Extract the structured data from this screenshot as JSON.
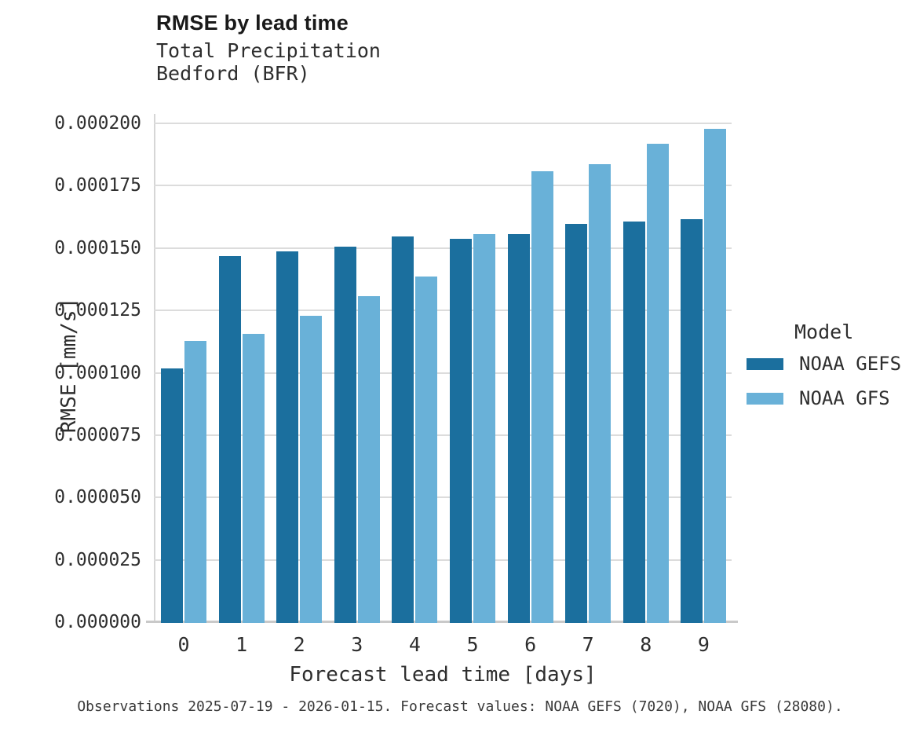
{
  "title": "RMSE by lead time",
  "subtitle_line1": "Total Precipitation",
  "subtitle_line2": "Bedford (BFR)",
  "caption": "Observations 2025-07-19 - 2026-01-15. Forecast values: NOAA GEFS (7020), NOAA GFS (28080).",
  "legend": {
    "title": "Model",
    "entries": [
      {
        "label": "NOAA GEFS",
        "color": "#1b6f9e"
      },
      {
        "label": "NOAA GFS",
        "color": "#69b1d8"
      }
    ]
  },
  "colors": {
    "gefs_bar": "#1b6f9e",
    "gfs_bar": "#69b1d8",
    "gridline": "#dcdcdc",
    "axis_line": "#c9c9c9",
    "text": "#2e2e2e"
  },
  "chart_data": {
    "type": "bar",
    "title": "RMSE by lead time",
    "subtitle": [
      "Total Precipitation",
      "Bedford (BFR)"
    ],
    "xlabel": "Forecast lead time [days]",
    "ylabel": "RMSE [mm/s]",
    "categories": [
      "0",
      "1",
      "2",
      "3",
      "4",
      "5",
      "6",
      "7",
      "8",
      "9"
    ],
    "series": [
      {
        "name": "NOAA GEFS",
        "color": "#1b6f9e",
        "values": [
          0.000102,
          0.000147,
          0.000149,
          0.000151,
          0.000155,
          0.000154,
          0.000156,
          0.00016,
          0.000161,
          0.000162
        ]
      },
      {
        "name": "NOAA GFS",
        "color": "#69b1d8",
        "values": [
          0.000113,
          0.000116,
          0.000123,
          0.000131,
          0.000139,
          0.000156,
          0.000181,
          0.000184,
          0.000192,
          0.000198
        ]
      }
    ],
    "ylim": [
      0,
      0.0002
    ],
    "ytick_step": 2.5e-05,
    "ytick_labels": [
      "0.000000",
      "0.000025",
      "0.000050",
      "0.000075",
      "0.000100",
      "0.000125",
      "0.000150",
      "0.000175",
      "0.000200"
    ],
    "grid": true,
    "legend_title": "Model",
    "legend_position": "right"
  }
}
